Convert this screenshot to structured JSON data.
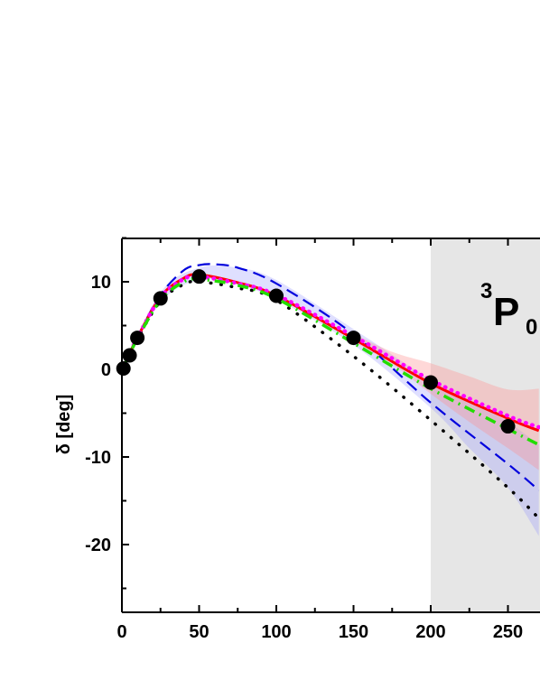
{
  "chart_data": {
    "type": "line",
    "title": "",
    "annotation": {
      "main": "P",
      "superscript": "3",
      "subscript": "0"
    },
    "xlabel": "",
    "ylabel": "δ [deg]",
    "xlim": [
      0,
      270
    ],
    "ylim": [
      -27.5,
      15
    ],
    "x_ticks": [
      0,
      50,
      100,
      150,
      200,
      250
    ],
    "y_ticks": [
      10,
      0,
      -10,
      -20
    ],
    "x_tick_labels": [
      "0",
      "50",
      "100",
      "150",
      "200",
      "250"
    ],
    "y_tick_labels": [
      "10",
      "0",
      "-10",
      "-20"
    ],
    "shaded_region": {
      "x_from": 200,
      "x_to": 270,
      "color": "#e6e6e6"
    },
    "bands": [
      {
        "color": "#8c8cff",
        "opacity": 0.28,
        "x": [
          0,
          25,
          50,
          75,
          100,
          150,
          200,
          225,
          250,
          270
        ],
        "lower": [
          0,
          7.6,
          10.2,
          9.6,
          8.0,
          2.8,
          -4.4,
          -9.0,
          -13.5,
          -19.0
        ],
        "upper": [
          0,
          8.8,
          11.6,
          11.6,
          10.2,
          4.6,
          -1.2,
          -3.5,
          -6.0,
          -8.6
        ]
      },
      {
        "color": "#ff9090",
        "opacity": 0.35,
        "x": [
          150,
          175,
          200,
          225,
          250,
          270
        ],
        "lower": [
          3.2,
          0.6,
          -2.8,
          -6.0,
          -9.0,
          -11.5
        ],
        "upper": [
          4.1,
          2.0,
          0.7,
          -0.8,
          -2.3,
          -2.2
        ]
      }
    ],
    "series": [
      {
        "style": "dotted",
        "color": "#000000",
        "x": [
          0,
          5,
          10,
          25,
          40,
          50,
          75,
          100,
          150,
          200,
          250,
          270
        ],
        "y": [
          0,
          1.8,
          3.5,
          7.8,
          9.7,
          10.0,
          9.3,
          7.9,
          1.5,
          -5.8,
          -13.5,
          -17.0
        ]
      },
      {
        "style": "dashed",
        "color": "#0000dd",
        "x": [
          0,
          5,
          10,
          25,
          40,
          50,
          60,
          75,
          100,
          150,
          200,
          250,
          270
        ],
        "y": [
          0,
          1.9,
          3.7,
          8.5,
          11.3,
          11.9,
          12.0,
          11.6,
          9.8,
          4.0,
          -3.8,
          -10.8,
          -13.8
        ]
      },
      {
        "style": "solid",
        "color": "#ff0000",
        "x": [
          0,
          5,
          10,
          25,
          40,
          50,
          75,
          100,
          150,
          200,
          250,
          270
        ],
        "y": [
          0,
          1.8,
          3.6,
          8.3,
          10.4,
          10.8,
          9.9,
          8.4,
          3.5,
          -1.6,
          -5.6,
          -7.0
        ]
      },
      {
        "style": "dotted-thick",
        "color": "#ff00ff",
        "x": [
          0,
          5,
          10,
          25,
          40,
          50,
          75,
          100,
          150,
          200,
          250,
          270
        ],
        "y": [
          0,
          1.8,
          3.6,
          8.2,
          10.3,
          10.6,
          9.8,
          8.5,
          3.8,
          -1.2,
          -5.3,
          -6.6
        ]
      },
      {
        "style": "dashdot",
        "color": "#22dd00",
        "x": [
          0,
          5,
          10,
          25,
          40,
          50,
          75,
          100,
          150,
          200,
          250,
          270
        ],
        "y": [
          0,
          1.7,
          3.5,
          7.9,
          10.0,
          10.3,
          9.6,
          8.1,
          3.0,
          -2.2,
          -6.8,
          -8.6
        ]
      }
    ],
    "points": {
      "color": "#000000",
      "x": [
        1,
        5,
        10,
        25,
        50,
        100,
        150,
        200,
        250
      ],
      "y": [
        0.1,
        1.6,
        3.6,
        8.1,
        10.6,
        8.4,
        3.6,
        -1.5,
        -6.5
      ]
    }
  }
}
